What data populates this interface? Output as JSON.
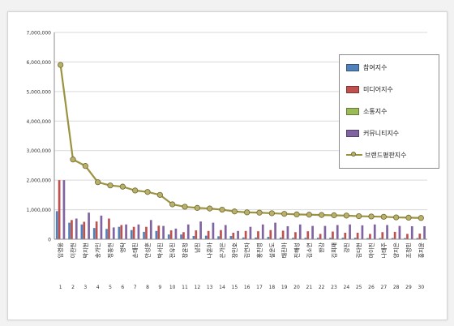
{
  "chart_data": {
    "type": "bar",
    "title": "",
    "xlabel": "",
    "ylabel": "",
    "ylim": [
      0,
      7000000
    ],
    "yticks": [
      0,
      1000000,
      2000000,
      3000000,
      4000000,
      5000000,
      6000000,
      7000000
    ],
    "ytick_labels": [
      "0",
      "1,000,000",
      "2,000,000",
      "3,000,000",
      "4,000,000",
      "5,000,000",
      "6,000,000",
      "7,000,000"
    ],
    "grid": true,
    "legend_position": "right",
    "categories": [
      "1",
      "2",
      "3",
      "4",
      "5",
      "6",
      "7",
      "8",
      "9",
      "10",
      "11",
      "12",
      "13",
      "14",
      "15",
      "16",
      "17",
      "18",
      "19",
      "20",
      "21",
      "22",
      "23",
      "24",
      "25",
      "26",
      "27",
      "28",
      "29",
      "30"
    ],
    "names": [
      "임영웅",
      "이찬원",
      "박지현",
      "송가인",
      "정동원",
      "영탁",
      "손태진",
      "안성훈",
      "박서진",
      "전유진",
      "장윤정",
      "남진",
      "나훈아",
      "은가은",
      "장민호",
      "김연자",
      "홍진영",
      "설운도",
      "태진아",
      "진해성",
      "김소연",
      "한강",
      "김희재",
      "강진",
      "김다현",
      "마이진",
      "나태주",
      "양지은",
      "조정민",
      "홍지윤"
    ],
    "series": [
      {
        "name": "참여지수",
        "color": "#4f81bd",
        "values": [
          950000,
          560000,
          500000,
          380000,
          350000,
          420000,
          310000,
          250000,
          280000,
          160000,
          160000,
          110000,
          120000,
          100000,
          110000,
          60000,
          60000,
          80000,
          60000,
          50000,
          50000,
          50000,
          50000,
          50000,
          50000,
          40000,
          40000,
          40000,
          40000,
          40000
        ]
      },
      {
        "name": "미디어지수",
        "color": "#c0504d",
        "values": [
          2000000,
          650000,
          590000,
          600000,
          700000,
          480000,
          420000,
          420000,
          460000,
          300000,
          240000,
          300000,
          280000,
          310000,
          220000,
          280000,
          270000,
          310000,
          290000,
          240000,
          270000,
          180000,
          260000,
          220000,
          220000,
          180000,
          240000,
          250000,
          180000,
          190000
        ]
      },
      {
        "name": "소통지수",
        "color": "#9bbb59",
        "values": [
          10000,
          10000,
          10000,
          10000,
          10000,
          10000,
          10000,
          10000,
          10000,
          10000,
          10000,
          10000,
          10000,
          10000,
          10000,
          10000,
          10000,
          10000,
          10000,
          10000,
          10000,
          10000,
          10000,
          10000,
          10000,
          10000,
          10000,
          10000,
          10000,
          10000
        ]
      },
      {
        "name": "커뮤니티지수",
        "color": "#8064a2",
        "values": [
          2000000,
          700000,
          900000,
          800000,
          400000,
          500000,
          500000,
          650000,
          450000,
          360000,
          500000,
          600000,
          560000,
          480000,
          280000,
          420000,
          500000,
          560000,
          440000,
          500000,
          450000,
          450000,
          480000,
          500000,
          470000,
          500000,
          480000,
          450000,
          440000,
          440000
        ]
      },
      {
        "name": "브랜드평판지수",
        "color": "#9c9340",
        "type": "line",
        "values": [
          5900000,
          2700000,
          2480000,
          1930000,
          1820000,
          1780000,
          1650000,
          1600000,
          1500000,
          1180000,
          1100000,
          1060000,
          1040000,
          1000000,
          940000,
          910000,
          900000,
          880000,
          860000,
          840000,
          830000,
          820000,
          810000,
          800000,
          780000,
          770000,
          760000,
          740000,
          730000,
          720000
        ]
      }
    ]
  }
}
